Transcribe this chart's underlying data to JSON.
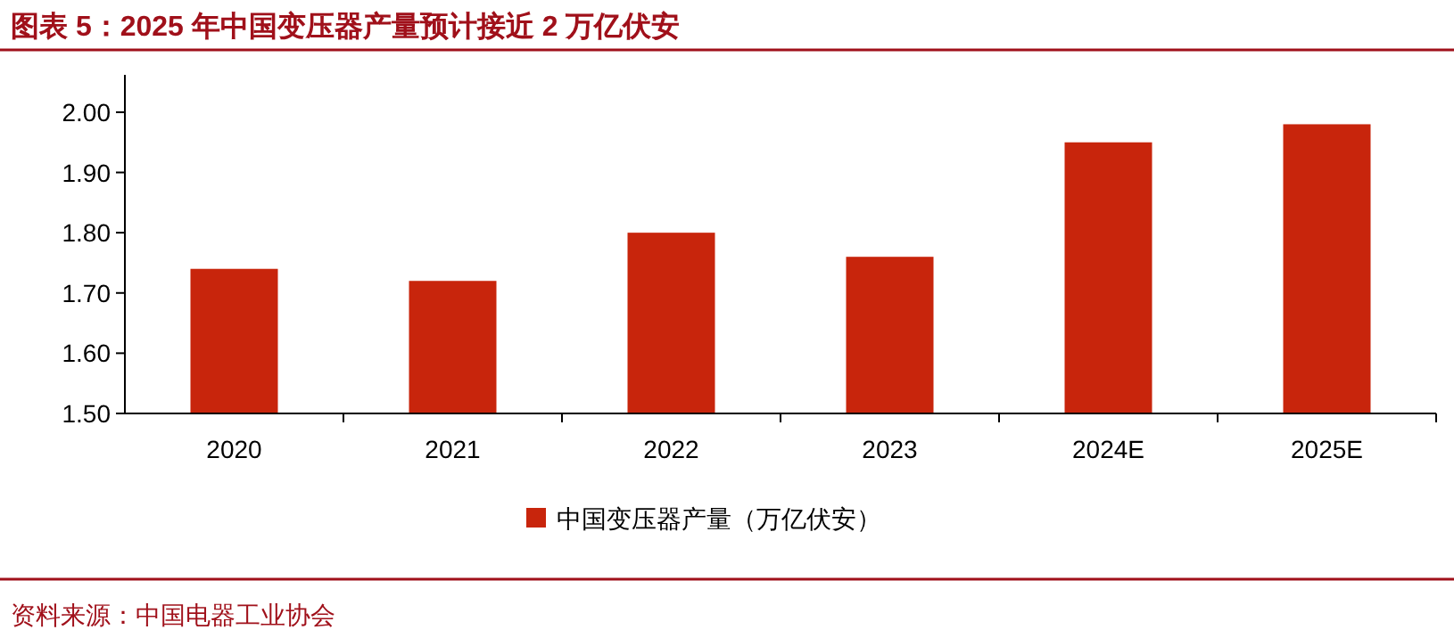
{
  "chart_data": {
    "type": "bar",
    "title": "图表 5：2025 年中国变压器产量预计接近 2 万亿伏安",
    "categories": [
      "2020",
      "2021",
      "2022",
      "2023",
      "2024E",
      "2025E"
    ],
    "series": [
      {
        "name": "中国变压器产量（万亿伏安）",
        "color": "#c8250c",
        "values": [
          1.74,
          1.72,
          1.8,
          1.76,
          1.95,
          1.98
        ]
      }
    ],
    "ylim": [
      1.5,
      2.062
    ],
    "yticks": [
      {
        "value": 1.5,
        "label": "1.50"
      },
      {
        "value": 1.6,
        "label": "1.60"
      },
      {
        "value": 1.7,
        "label": "1.70"
      },
      {
        "value": 1.8,
        "label": "1.80"
      },
      {
        "value": 1.9,
        "label": "1.90"
      },
      {
        "value": 2.0,
        "label": "2.00"
      }
    ],
    "legend": "bottom",
    "annotations": [
      "资料来源：中国电器工业协会"
    ]
  }
}
